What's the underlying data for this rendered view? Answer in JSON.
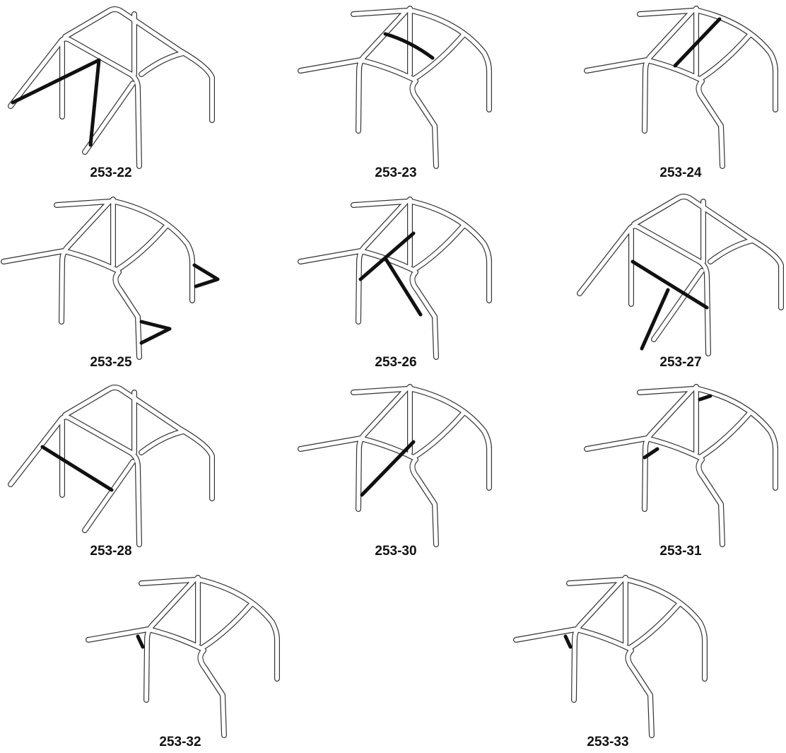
{
  "diagram": {
    "items": [
      {
        "label": "253-22"
      },
      {
        "label": "253-23"
      },
      {
        "label": "253-24"
      },
      {
        "label": "253-25"
      },
      {
        "label": "253-26"
      },
      {
        "label": "253-27"
      },
      {
        "label": "253-28"
      },
      {
        "label": "253-30"
      },
      {
        "label": "253-31"
      },
      {
        "label": "253-32"
      },
      {
        "label": "253-33"
      }
    ]
  }
}
